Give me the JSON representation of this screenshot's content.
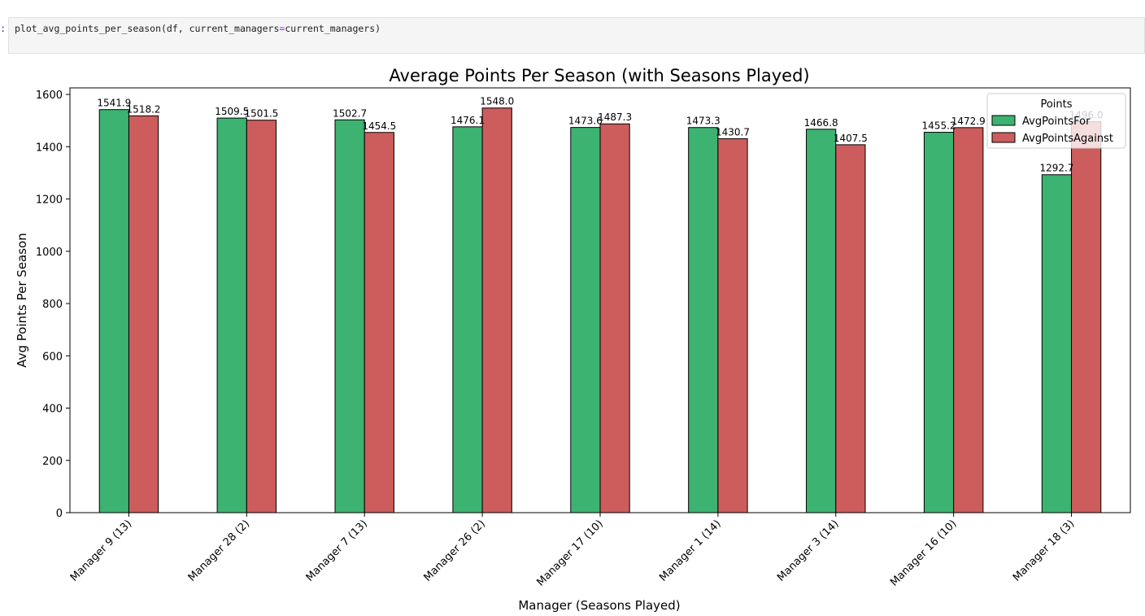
{
  "notebook": {
    "prompt": ":",
    "code": {
      "func": "plot_avg_points_per_season(df, current_managers",
      "op": "=",
      "rest": "current_managers)"
    }
  },
  "colors": {
    "for": "#3cb371",
    "against": "#cd5c5c",
    "edge": "#000000"
  },
  "chart_data": {
    "type": "bar",
    "title": "Average Points Per Season (with Seasons Played)",
    "xlabel": "Manager (Seasons Played)",
    "ylabel": "Avg Points Per Season",
    "ylim": [
      0,
      1625
    ],
    "yticks": [
      0,
      200,
      400,
      600,
      800,
      1000,
      1200,
      1400,
      1600
    ],
    "categories": [
      "Manager 9 (13)",
      "Manager 28 (2)",
      "Manager 7 (13)",
      "Manager 26 (2)",
      "Manager 17 (10)",
      "Manager 1 (14)",
      "Manager 3 (14)",
      "Manager 16 (10)",
      "Manager 18 (3)"
    ],
    "series": [
      {
        "name": "AvgPointsFor",
        "values": [
          1541.9,
          1509.5,
          1502.7,
          1476.1,
          1473.6,
          1473.3,
          1466.8,
          1455.2,
          1292.7
        ]
      },
      {
        "name": "AvgPointsAgainst",
        "values": [
          1518.2,
          1501.5,
          1454.5,
          1548.0,
          1487.3,
          1430.7,
          1407.5,
          1472.9,
          1496.0
        ]
      }
    ],
    "legend": {
      "title": "Points",
      "placement": "top-right"
    },
    "grid": false
  }
}
